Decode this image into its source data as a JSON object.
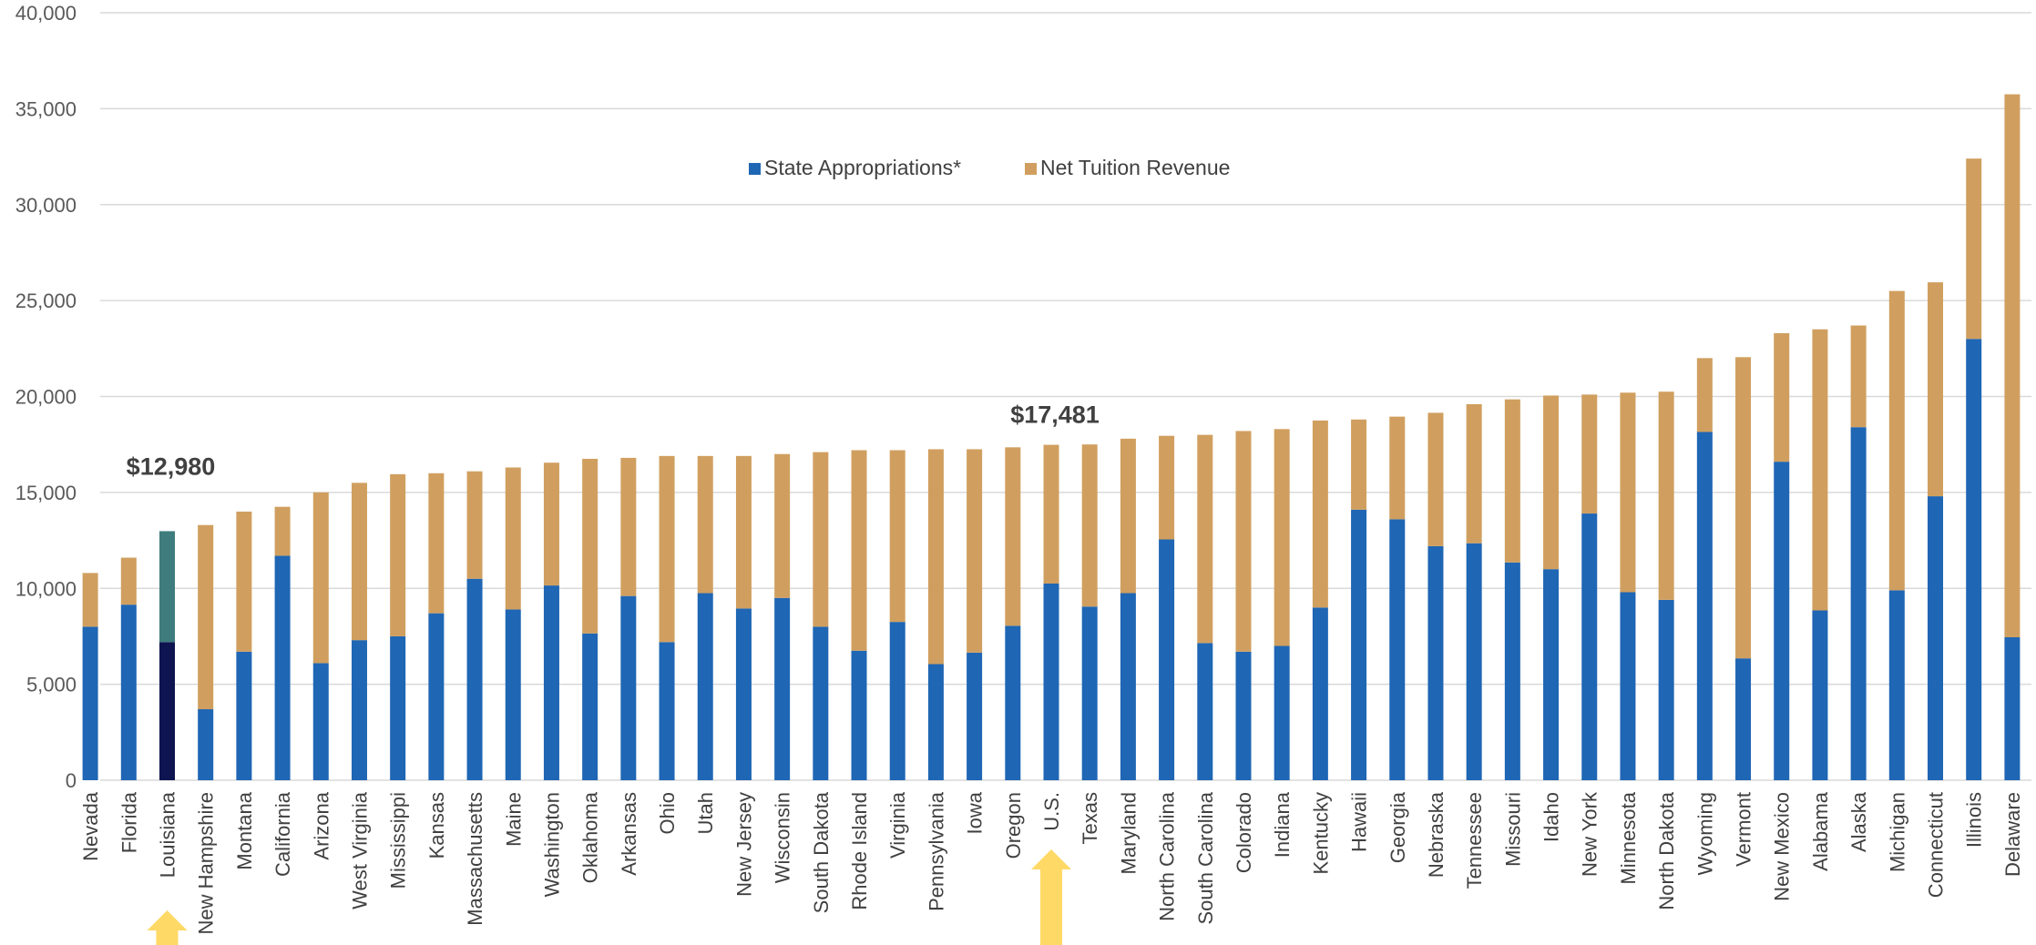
{
  "chart_data": {
    "type": "bar",
    "stacked": true,
    "title": "",
    "xlabel": "",
    "ylabel": "",
    "ylim": [
      0,
      40000
    ],
    "yticks": [
      0,
      5000,
      10000,
      15000,
      20000,
      25000,
      30000,
      35000,
      40000
    ],
    "ytick_labels": [
      "0",
      "5,000",
      "10,000",
      "15,000",
      "20,000",
      "25,000",
      "30,000",
      "35,000",
      "40,000"
    ],
    "grid": true,
    "legend_position": "top-center",
    "categories": [
      "Nevada",
      "Florida",
      "Louisiana",
      "New Hampshire",
      "Montana",
      "California",
      "Arizona",
      "West Virginia",
      "Mississippi",
      "Kansas",
      "Massachusetts",
      "Maine",
      "Washington",
      "Oklahoma",
      "Arkansas",
      "Ohio",
      "Utah",
      "New Jersey",
      "Wisconsin",
      "South Dakota",
      "Rhode Island",
      "Virginia",
      "Pennsylvania",
      "Iowa",
      "Oregon",
      "U.S.",
      "Texas",
      "Maryland",
      "North Carolina",
      "South Carolina",
      "Colorado",
      "Indiana",
      "Kentucky",
      "Hawaii",
      "Georgia",
      "Nebraska",
      "Tennessee",
      "Missouri",
      "Idaho",
      "New York",
      "Minnesota",
      "North Dakota",
      "Wyoming",
      "Vermont",
      "New Mexico",
      "Alabama",
      "Alaska",
      "Michigan",
      "Connecticut",
      "Illinois",
      "Delaware"
    ],
    "series": [
      {
        "name": "State Appropriations*",
        "color": "#1F66B4",
        "values": [
          8000,
          9150,
          7200,
          3700,
          6700,
          11700,
          6100,
          7300,
          7500,
          8700,
          10500,
          8900,
          10150,
          7650,
          9600,
          7200,
          9750,
          8950,
          9500,
          8000,
          6750,
          8250,
          6050,
          6650,
          8050,
          10250,
          9050,
          9750,
          12550,
          7150,
          6700,
          7000,
          9000,
          14100,
          13600,
          12200,
          12350,
          11350,
          11000,
          13900,
          9800,
          9400,
          18150,
          6350,
          16600,
          8850,
          18400,
          9900,
          14800,
          23000,
          7450
        ]
      },
      {
        "name": "Net Tuition Revenue",
        "color": "#D09F5F",
        "values": [
          2800,
          2450,
          5780,
          9600,
          7300,
          2550,
          8900,
          8200,
          8450,
          7300,
          5600,
          7400,
          6400,
          9100,
          7200,
          9700,
          7150,
          7950,
          7500,
          9100,
          10450,
          8950,
          11200,
          10600,
          9300,
          7231,
          8450,
          8050,
          5400,
          10850,
          11500,
          11300,
          9750,
          4700,
          5350,
          6950,
          7250,
          8500,
          9050,
          6200,
          10400,
          10850,
          3850,
          15700,
          6700,
          14650,
          5300,
          15600,
          11150,
          9400,
          28300
        ]
      },
      {
        "name": "Louisiana state appropriations highlight",
        "color": "#0D1450",
        "index": 2
      },
      {
        "name": "Louisiana net tuition highlight",
        "color": "#3E7C7E",
        "index": 2
      }
    ],
    "annotations": [
      {
        "text": "$12,980",
        "category": "Louisiana",
        "value": 12980
      },
      {
        "text": "$17,481",
        "category": "U.S.",
        "value": 17481
      }
    ],
    "arrows": [
      {
        "category": "Louisiana",
        "color": "#FFD966"
      },
      {
        "category": "U.S.",
        "color": "#FFD966"
      }
    ]
  },
  "colors": {
    "gridline": "#D9D9D9",
    "axis_text": "#595959"
  }
}
